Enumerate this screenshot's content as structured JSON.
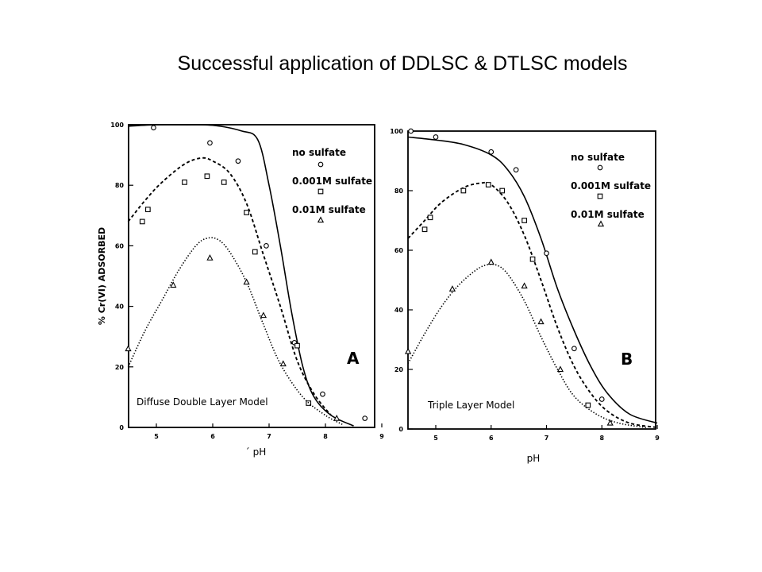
{
  "slide": {
    "title": "Successful application of DDLSC & DTLSC models"
  },
  "chart_data": [
    {
      "type": "scatter",
      "panel_label": "A",
      "model_label": "Diffuse Double Layer Model",
      "xlabel": "´ pH",
      "ylabel": "% Cr(VI) ADSORBED",
      "xlim": [
        4.5,
        9
      ],
      "ylim": [
        0,
        100
      ],
      "x_ticks": [
        "5",
        "6",
        "7",
        "8",
        "9"
      ],
      "y_ticks": [
        "0",
        "20",
        "40",
        "60",
        "80",
        "100"
      ],
      "legend": [
        "no sulfate",
        "0.001M sulfate",
        "0.01M sulfate"
      ],
      "series": [
        {
          "name": "no sulfate",
          "marker": "circle",
          "points": [
            [
              4.95,
              99
            ],
            [
              5.95,
              94
            ],
            [
              6.45,
              88
            ],
            [
              6.95,
              60
            ],
            [
              7.45,
              28
            ],
            [
              7.95,
              11
            ],
            [
              8.7,
              3
            ]
          ],
          "curve": [
            [
              4.5,
              99.5
            ],
            [
              5.0,
              100
            ],
            [
              5.5,
              100
            ],
            [
              6.0,
              99.8
            ],
            [
              6.5,
              98
            ],
            [
              6.8,
              95
            ],
            [
              7.0,
              80
            ],
            [
              7.2,
              60
            ],
            [
              7.4,
              38
            ],
            [
              7.6,
              20
            ],
            [
              7.8,
              10
            ],
            [
              8.1,
              4
            ],
            [
              8.5,
              0.5
            ]
          ]
        },
        {
          "name": "0.001M sulfate",
          "marker": "square",
          "points": [
            [
              4.75,
              68
            ],
            [
              4.85,
              72
            ],
            [
              5.5,
              81
            ],
            [
              5.9,
              83
            ],
            [
              6.2,
              81
            ],
            [
              6.6,
              71
            ],
            [
              6.75,
              58
            ],
            [
              7.5,
              27
            ],
            [
              7.7,
              8
            ]
          ],
          "curve": [
            [
              4.5,
              68
            ],
            [
              4.8,
              75
            ],
            [
              5.1,
              81
            ],
            [
              5.5,
              87
            ],
            [
              5.8,
              89
            ],
            [
              6.0,
              88
            ],
            [
              6.3,
              84
            ],
            [
              6.6,
              74
            ],
            [
              6.9,
              57
            ],
            [
              7.2,
              40
            ],
            [
              7.5,
              22
            ],
            [
              7.8,
              11
            ],
            [
              8.1,
              4
            ]
          ]
        },
        {
          "name": "0.01M sulfate",
          "marker": "triangle",
          "points": [
            [
              4.5,
              26
            ],
            [
              5.3,
              47
            ],
            [
              5.95,
              56
            ],
            [
              6.6,
              48
            ],
            [
              6.9,
              37
            ],
            [
              7.25,
              21
            ],
            [
              8.2,
              3
            ]
          ],
          "curve": [
            [
              4.5,
              20
            ],
            [
              4.8,
              32
            ],
            [
              5.1,
              42
            ],
            [
              5.4,
              52
            ],
            [
              5.7,
              60
            ],
            [
              5.9,
              62.5
            ],
            [
              6.1,
              62
            ],
            [
              6.3,
              58
            ],
            [
              6.6,
              48
            ],
            [
              6.9,
              34
            ],
            [
              7.2,
              21
            ],
            [
              7.6,
              10
            ],
            [
              8.0,
              4
            ],
            [
              8.3,
              1
            ]
          ]
        }
      ]
    },
    {
      "type": "scatter",
      "panel_label": "B",
      "model_label": "Triple Layer Model",
      "xlabel": "pH",
      "ylabel": "",
      "xlim": [
        4.5,
        9
      ],
      "ylim": [
        0,
        100
      ],
      "x_ticks": [
        "5",
        "6",
        "7",
        "8",
        "9"
      ],
      "y_ticks": [
        "0",
        "20",
        "40",
        "60",
        "80",
        "100"
      ],
      "legend": [
        "no sulfate",
        "0.001M sulfate",
        "0.01M sulfate"
      ],
      "series": [
        {
          "name": "no sulfate",
          "marker": "circle",
          "points": [
            [
              4.55,
              100
            ],
            [
              5.0,
              98
            ],
            [
              6.0,
              93
            ],
            [
              6.45,
              87
            ],
            [
              7.0,
              59
            ],
            [
              7.5,
              27
            ],
            [
              8.0,
              10
            ]
          ],
          "curve": [
            [
              4.5,
              98
            ],
            [
              5.0,
              97
            ],
            [
              5.5,
              95.5
            ],
            [
              6.0,
              92
            ],
            [
              6.3,
              87
            ],
            [
              6.6,
              78
            ],
            [
              6.9,
              64
            ],
            [
              7.2,
              47
            ],
            [
              7.5,
              33
            ],
            [
              7.8,
              21
            ],
            [
              8.1,
              12
            ],
            [
              8.5,
              5
            ],
            [
              9.0,
              2
            ]
          ]
        },
        {
          "name": "0.001M sulfate",
          "marker": "square",
          "points": [
            [
              4.8,
              67
            ],
            [
              4.9,
              71
            ],
            [
              5.5,
              80
            ],
            [
              5.95,
              82
            ],
            [
              6.2,
              80
            ],
            [
              6.6,
              70
            ],
            [
              6.75,
              57
            ],
            [
              7.75,
              8
            ]
          ],
          "curve": [
            [
              4.5,
              64
            ],
            [
              4.8,
              70
            ],
            [
              5.1,
              76
            ],
            [
              5.5,
              81
            ],
            [
              5.8,
              82.5
            ],
            [
              6.0,
              82
            ],
            [
              6.3,
              76
            ],
            [
              6.6,
              65
            ],
            [
              6.9,
              50
            ],
            [
              7.2,
              34
            ],
            [
              7.5,
              21
            ],
            [
              7.8,
              12
            ],
            [
              8.1,
              6
            ],
            [
              8.5,
              2
            ],
            [
              9.0,
              0.5
            ]
          ]
        },
        {
          "name": "0.01M sulfate",
          "marker": "triangle",
          "points": [
            [
              4.5,
              26
            ],
            [
              5.3,
              47
            ],
            [
              6.0,
              56
            ],
            [
              6.6,
              48
            ],
            [
              6.9,
              36
            ],
            [
              7.25,
              20
            ],
            [
              8.15,
              2
            ]
          ],
          "curve": [
            [
              4.5,
              22
            ],
            [
              4.8,
              32
            ],
            [
              5.1,
              41
            ],
            [
              5.4,
              48
            ],
            [
              5.7,
              53
            ],
            [
              5.9,
              55
            ],
            [
              6.1,
              55
            ],
            [
              6.3,
              52
            ],
            [
              6.6,
              43
            ],
            [
              6.9,
              31
            ],
            [
              7.2,
              20
            ],
            [
              7.5,
              11
            ],
            [
              7.9,
              5
            ],
            [
              8.3,
              2
            ],
            [
              8.8,
              0.5
            ]
          ]
        }
      ]
    }
  ]
}
